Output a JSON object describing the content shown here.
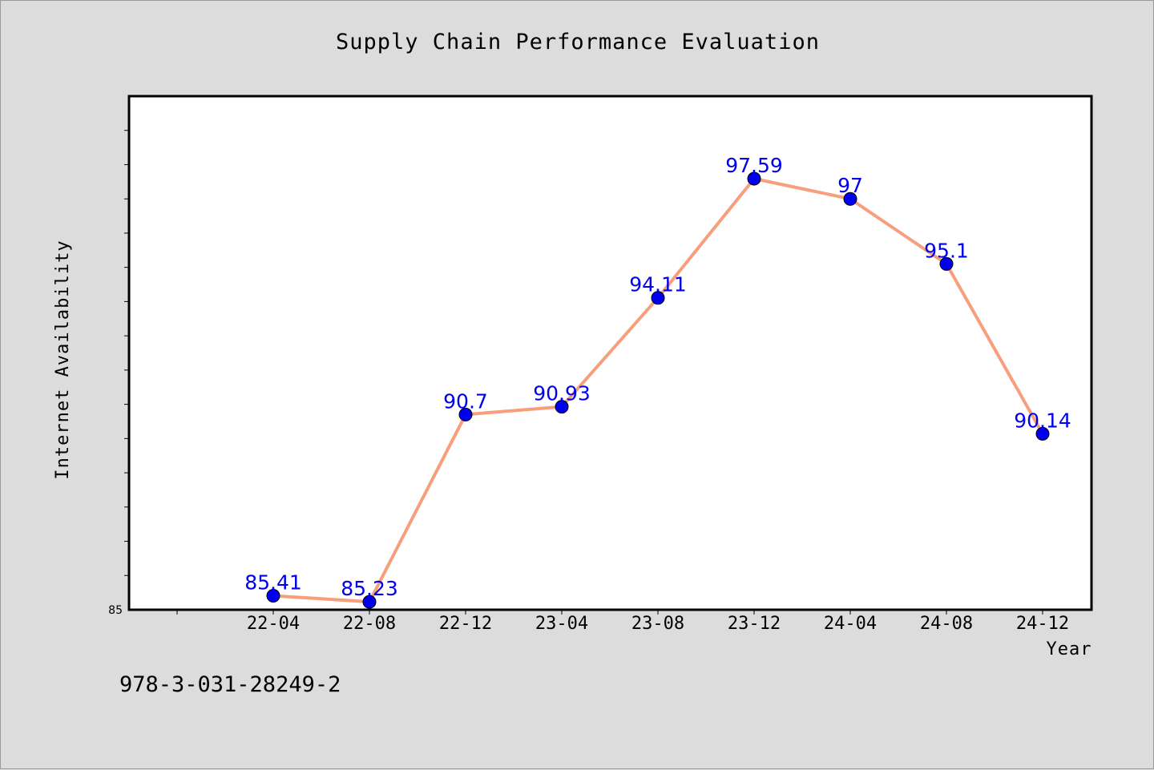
{
  "footer": {
    "code": "978-3-031-28249-2"
  },
  "colors": {
    "background": "#dcdcdc",
    "plot_background": "#ffffff",
    "line": "#f79f7d",
    "marker": "#0000ee",
    "data_label": "#0000ee"
  },
  "chart_data": {
    "type": "line",
    "title": "Supply Chain Performance Evaluation",
    "xlabel": "Year",
    "ylabel": "Internet Availability",
    "categories": [
      "22-04",
      "22-08",
      "22-12",
      "23-04",
      "23-08",
      "23-12",
      "24-04",
      "24-08",
      "24-12"
    ],
    "values": [
      85.41,
      85.23,
      90.7,
      90.93,
      94.11,
      97.59,
      97,
      95.1,
      90.14
    ],
    "data_labels": [
      "85.41",
      "85.23",
      "90.7",
      "90.93",
      "94.11",
      "97.59",
      "97",
      "95.1",
      "90.14"
    ],
    "ytick_labels": [
      "85"
    ],
    "ylim": [
      85,
      100
    ],
    "ytick_step": 1,
    "grid": false,
    "legend": "none",
    "marker": "circle"
  }
}
